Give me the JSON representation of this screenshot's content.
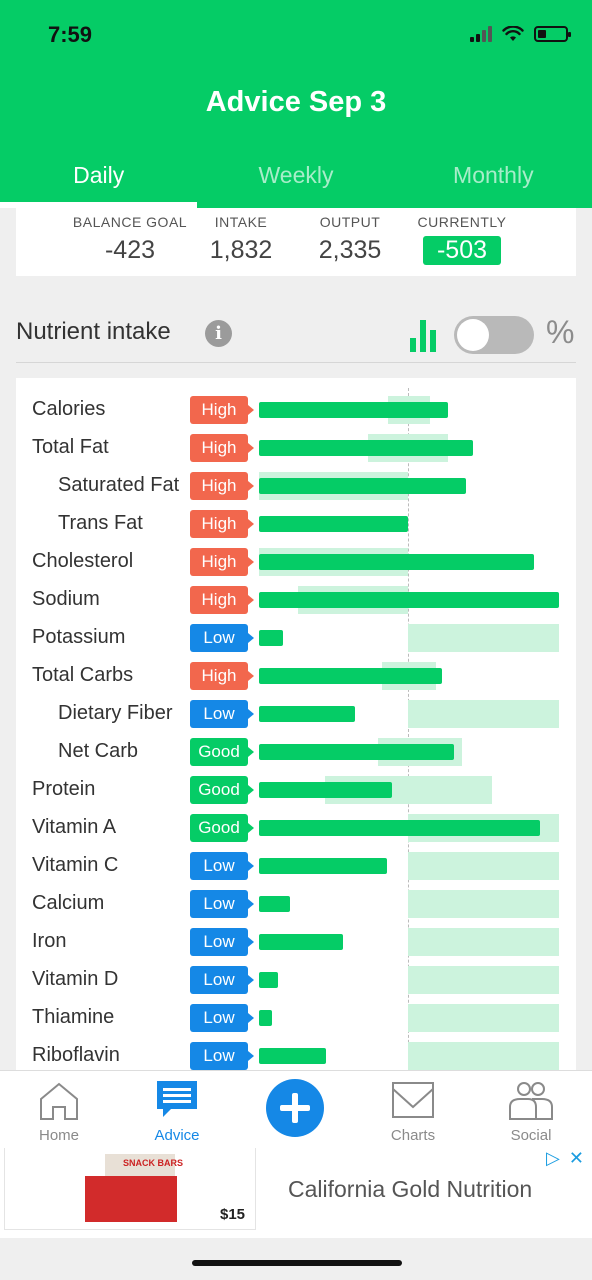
{
  "status_bar": {
    "time": "7:59"
  },
  "header": {
    "title": "Advice Sep 3"
  },
  "tabs": [
    {
      "label": "Daily",
      "active": true
    },
    {
      "label": "Weekly",
      "active": false
    },
    {
      "label": "Monthly",
      "active": false
    }
  ],
  "balance": {
    "goal_label": "BALANCE GOAL",
    "goal_value": "-423",
    "intake_label": "INTAKE",
    "intake_value": "1,832",
    "output_label": "OUTPUT",
    "output_value": "2,335",
    "current_label": "CURRENTLY",
    "current_value": "-503"
  },
  "nutrient_header": {
    "title": "Nutrient intake",
    "info_icon": "info-icon",
    "chart_icon": "bar-chart-icon",
    "toggle_on": false,
    "percent_symbol": "%"
  },
  "nutrients": [
    {
      "name": "Calories",
      "status": "High",
      "indent": false
    },
    {
      "name": "Total Fat",
      "status": "High",
      "indent": false
    },
    {
      "name": "Saturated Fat",
      "status": "High",
      "indent": true
    },
    {
      "name": "Trans Fat",
      "status": "High",
      "indent": true
    },
    {
      "name": "Cholesterol",
      "status": "High",
      "indent": false
    },
    {
      "name": "Sodium",
      "status": "High",
      "indent": false
    },
    {
      "name": "Potassium",
      "status": "Low",
      "indent": false
    },
    {
      "name": "Total Carbs",
      "status": "High",
      "indent": false
    },
    {
      "name": "Dietary Fiber",
      "status": "Low",
      "indent": true
    },
    {
      "name": "Net Carb",
      "status": "Good",
      "indent": true
    },
    {
      "name": "Protein",
      "status": "Good",
      "indent": false
    },
    {
      "name": "Vitamin A",
      "status": "Good",
      "indent": false
    },
    {
      "name": "Vitamin C",
      "status": "Low",
      "indent": false
    },
    {
      "name": "Calcium",
      "status": "Low",
      "indent": false
    },
    {
      "name": "Iron",
      "status": "Low",
      "indent": false
    },
    {
      "name": "Vitamin D",
      "status": "Low",
      "indent": false
    },
    {
      "name": "Thiamine",
      "status": "Low",
      "indent": false
    },
    {
      "name": "Riboflavin",
      "status": "Low",
      "indent": false
    }
  ],
  "bottom_nav": [
    {
      "label": "Home",
      "icon": "home-icon",
      "active": false
    },
    {
      "label": "Advice",
      "icon": "advice-icon",
      "active": true
    },
    {
      "label": "",
      "icon": "add-icon",
      "active": false
    },
    {
      "label": "Charts",
      "icon": "charts-icon",
      "active": false
    },
    {
      "label": "Social",
      "icon": "social-icon",
      "active": false
    }
  ],
  "ad": {
    "title": "California Gold Nutrition",
    "price": "$15",
    "image_text": "SNACK BARS"
  },
  "colors": {
    "brand_green": "#05cc66",
    "high": "#f2674d",
    "low": "#1588e6",
    "good": "#05cc66"
  }
}
